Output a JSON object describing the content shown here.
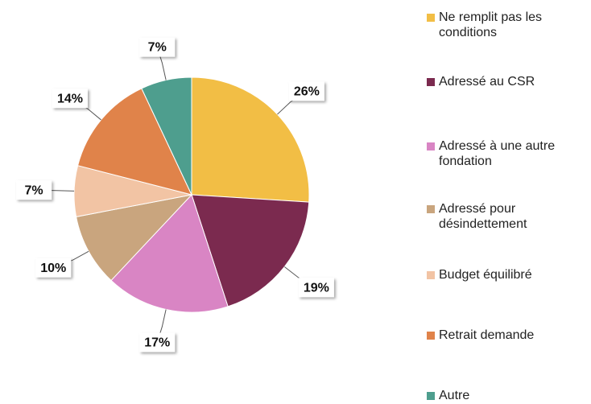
{
  "chart_data": {
    "type": "pie",
    "categories": [
      "Ne remplit pas les conditions",
      "Adressé au CSR",
      "Adressé à une autre fondation",
      "Adressé pour désindettement",
      "Budget équilibré",
      "Retrait demande",
      "Autre"
    ],
    "values": [
      26,
      19,
      17,
      10,
      7,
      14,
      7
    ],
    "value_labels": [
      "26%",
      "19%",
      "17%",
      "10%",
      "7%",
      "14%",
      "7%"
    ],
    "colors": [
      "#f2be45",
      "#7b2a4f",
      "#d985c4",
      "#c9a57e",
      "#f2c4a4",
      "#e0834a",
      "#4e9e8e"
    ]
  }
}
